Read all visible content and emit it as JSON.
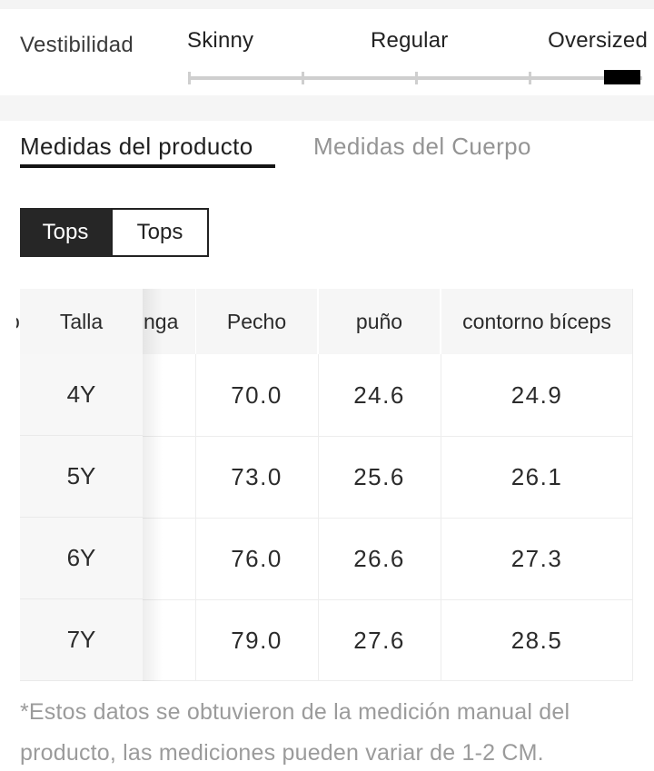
{
  "fit": {
    "label": "Vestibilidad",
    "options": [
      {
        "label": "Skinny"
      },
      {
        "label": "Regular"
      },
      {
        "label": "Oversized"
      }
    ],
    "selected": "Oversized"
  },
  "tabs": {
    "product_tab": "Medidas del producto",
    "body_tab": "Medidas del Cuerpo",
    "active_tab": "Medidas del producto"
  },
  "category_toggle": {
    "selected_label": "Tops",
    "unselected_label": "Tops"
  },
  "table": {
    "columns": {
      "size": "Talla",
      "sleeve_partial": "nga",
      "left_edge_fragment": "o",
      "chest": "Pecho",
      "cuff": "puño",
      "biceps": "contorno bíceps"
    },
    "rows": [
      {
        "size": "4Y",
        "chest": "70.0",
        "cuff": "24.6",
        "biceps": "24.9"
      },
      {
        "size": "5Y",
        "chest": "73.0",
        "cuff": "25.6",
        "biceps": "26.1"
      },
      {
        "size": "6Y",
        "chest": "76.0",
        "cuff": "26.6",
        "biceps": "27.3"
      },
      {
        "size": "7Y",
        "chest": "79.0",
        "cuff": "27.6",
        "biceps": "28.5"
      }
    ],
    "unit_note": "CM"
  },
  "note": {
    "lines": [
      "*Estos datos se obtuvieron de la medición manual del",
      "producto,  las mediciones pueden variar de 1-2 CM."
    ]
  },
  "colors": {
    "marker_black": "#000000",
    "selected_button_bg": "#262626",
    "tab_underline": "#141414",
    "table_header_bg": "#f6f6f6",
    "sticky_column_bg": "#f7f7f7",
    "band_gray": "#f5f5f5",
    "muted_text": "#9b9b9b",
    "divider": "#ededed"
  }
}
